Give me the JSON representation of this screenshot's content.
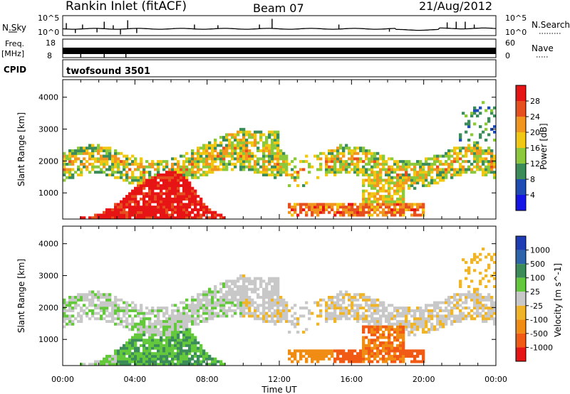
{
  "header": {
    "station": "Rankin Inlet (fitACF)",
    "beam": "Beam 07",
    "date": "21/Aug/2012"
  },
  "aux_panels": {
    "nsky": {
      "label": "N.Sky",
      "ticks": [
        "10^5",
        "10^0"
      ]
    },
    "nsearch": {
      "label": "N.Search",
      "ticks": [
        "10^5",
        "10^0"
      ]
    },
    "freq": {
      "label": "Freq.",
      "unit": "[MHz]",
      "ticks": [
        "18",
        "8"
      ]
    },
    "nave": {
      "label": "Nave",
      "ticks": [
        "60",
        "0"
      ]
    },
    "cpid": {
      "label": "CPID",
      "value": "twofsound 3501"
    }
  },
  "colors": {
    "power": [
      "#1414e6",
      "#1e4bb4",
      "#3c8c5a",
      "#8cc83c",
      "#f0c814",
      "#f0961e",
      "#e6501e",
      "#e61414"
    ],
    "velocity": [
      "#1e3cb4",
      "#2d64aa",
      "#3c8c5a",
      "#64c83c",
      "#c8c8c8",
      "#f0b428",
      "#f08c14",
      "#f05a14",
      "#e61414"
    ]
  },
  "chart_data": [
    {
      "type": "heatmap",
      "name": "power",
      "ylabel": "Slant Range [km]",
      "xlim": [
        0,
        24
      ],
      "ylim": [
        180,
        4550
      ],
      "yticks": [
        1000,
        2000,
        3000,
        4000
      ],
      "colorbar": {
        "label": "Power [dB]",
        "ticks": [
          "4",
          "8",
          "12",
          "16",
          "20",
          "24",
          "28"
        ]
      }
    },
    {
      "type": "heatmap",
      "name": "velocity",
      "ylabel": "Slant Range [km]",
      "xlabel": "Time UT",
      "xlim": [
        0,
        24
      ],
      "ylim": [
        180,
        4550
      ],
      "yticks": [
        1000,
        2000,
        3000,
        4000
      ],
      "xtick_labels": [
        "00:00",
        "04:00",
        "08:00",
        "12:00",
        "16:00",
        "20:00",
        "00:00"
      ],
      "colorbar": {
        "label": "Velocity [m s^-1]",
        "ticks": [
          "1000",
          "500",
          "100",
          "25",
          "-25",
          "-100",
          "-500",
          "-1000"
        ]
      }
    }
  ]
}
